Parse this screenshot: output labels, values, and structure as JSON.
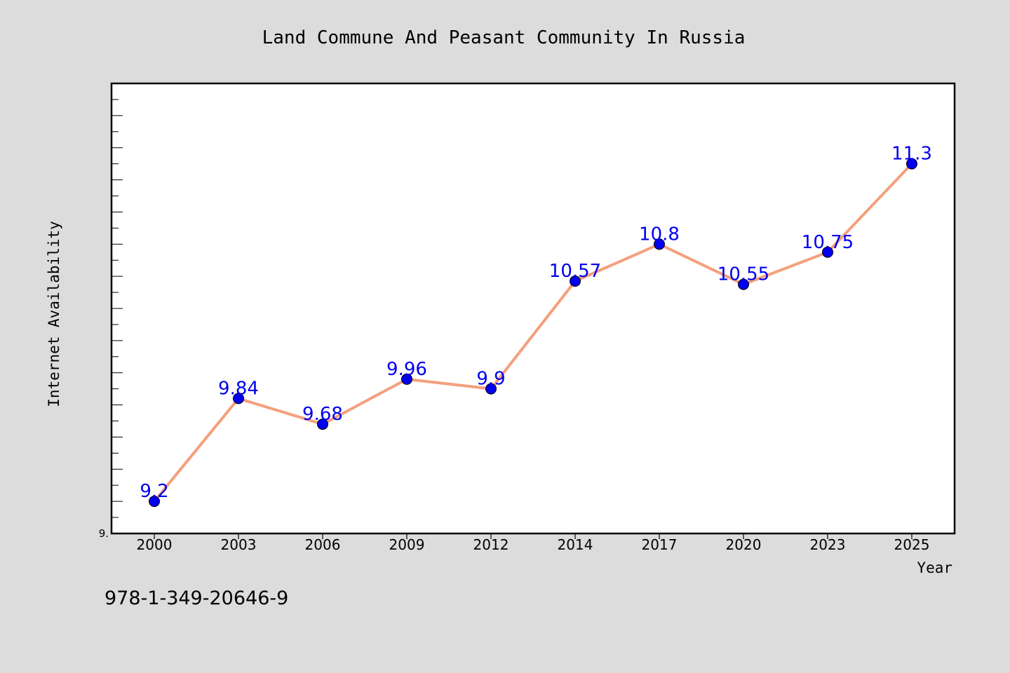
{
  "chart_data": {
    "type": "line",
    "title": "Land Commune And Peasant Community In Russia",
    "xlabel": "Year",
    "ylabel": "Internet Availability",
    "categories": [
      "2000",
      "2003",
      "2006",
      "2009",
      "2012",
      "2014",
      "2017",
      "2020",
      "2023",
      "2025"
    ],
    "series": [
      {
        "values": [
          9.2,
          9.84,
          9.68,
          9.96,
          9.9,
          10.57,
          10.8,
          10.55,
          10.75,
          11.3
        ],
        "labels": [
          "9.2",
          "9.84",
          "9.68",
          "9.96",
          "9.9",
          "10.57",
          "10.8",
          "10.55",
          "10.75",
          "11.3"
        ],
        "line_color": "#f4a07c",
        "marker_color": "#0000ee",
        "label_color": "#0000ee"
      }
    ],
    "ylim": [
      9.0,
      11.8
    ],
    "y_tick_labels": [
      "9."
    ],
    "grid": false,
    "legend": "none"
  },
  "footer_text": "978-1-349-20646-9",
  "colors": {
    "background": "#dcdcdc",
    "plot_background": "#ffffff",
    "axis": "#000000"
  }
}
